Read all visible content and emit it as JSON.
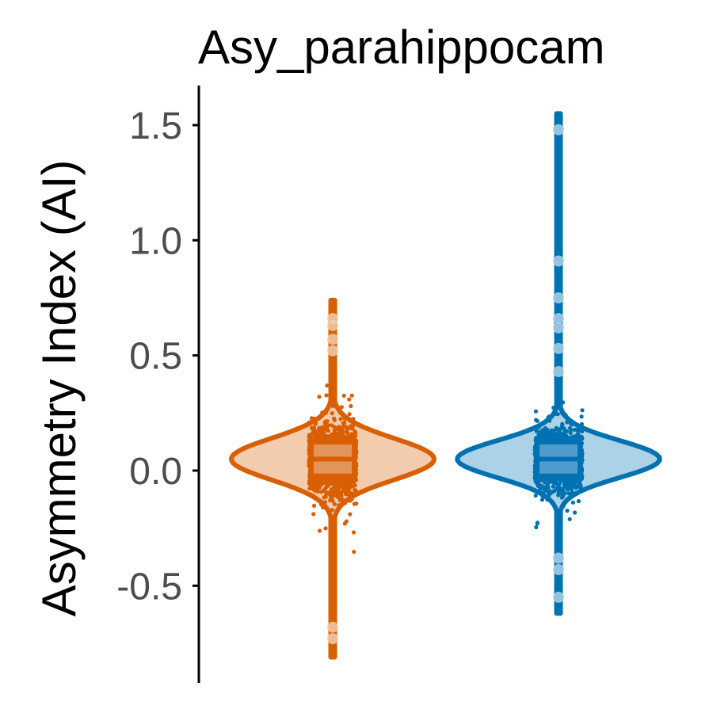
{
  "chart_data": {
    "type": "violin",
    "title": "Asy_parahippocam",
    "xlabel": "",
    "ylabel": "Asymmetry Index (AI)",
    "ylim": [
      -0.88,
      1.67
    ],
    "yticks": [
      -0.5,
      0.0,
      0.5,
      1.0,
      1.5
    ],
    "ytick_labels": [
      "-0.5",
      "0.0",
      "0.5",
      "1.0",
      "1.5"
    ],
    "grid": false,
    "legend": "none",
    "groups": [
      {
        "color": "#d95f02",
        "fill": "#f3cbad",
        "box_fill": "#e2955a",
        "min": -0.81,
        "max": 0.74,
        "q1": -0.02,
        "median": 0.05,
        "q3": 0.12,
        "mode": 0.05,
        "density_spread": 0.09,
        "outliers": [
          -0.73,
          -0.68,
          0.52,
          0.57,
          0.63,
          0.66
        ]
      },
      {
        "color": "#0072b2",
        "fill": "#acd2e8",
        "box_fill": "#4d9ccc",
        "min": -0.62,
        "max": 1.55,
        "q1": -0.02,
        "median": 0.05,
        "q3": 0.12,
        "mode": 0.05,
        "density_spread": 0.08,
        "outliers": [
          -0.55,
          -0.43,
          -0.38,
          0.43,
          0.53,
          0.62,
          0.66,
          0.75,
          0.91,
          1.48
        ]
      }
    ]
  }
}
